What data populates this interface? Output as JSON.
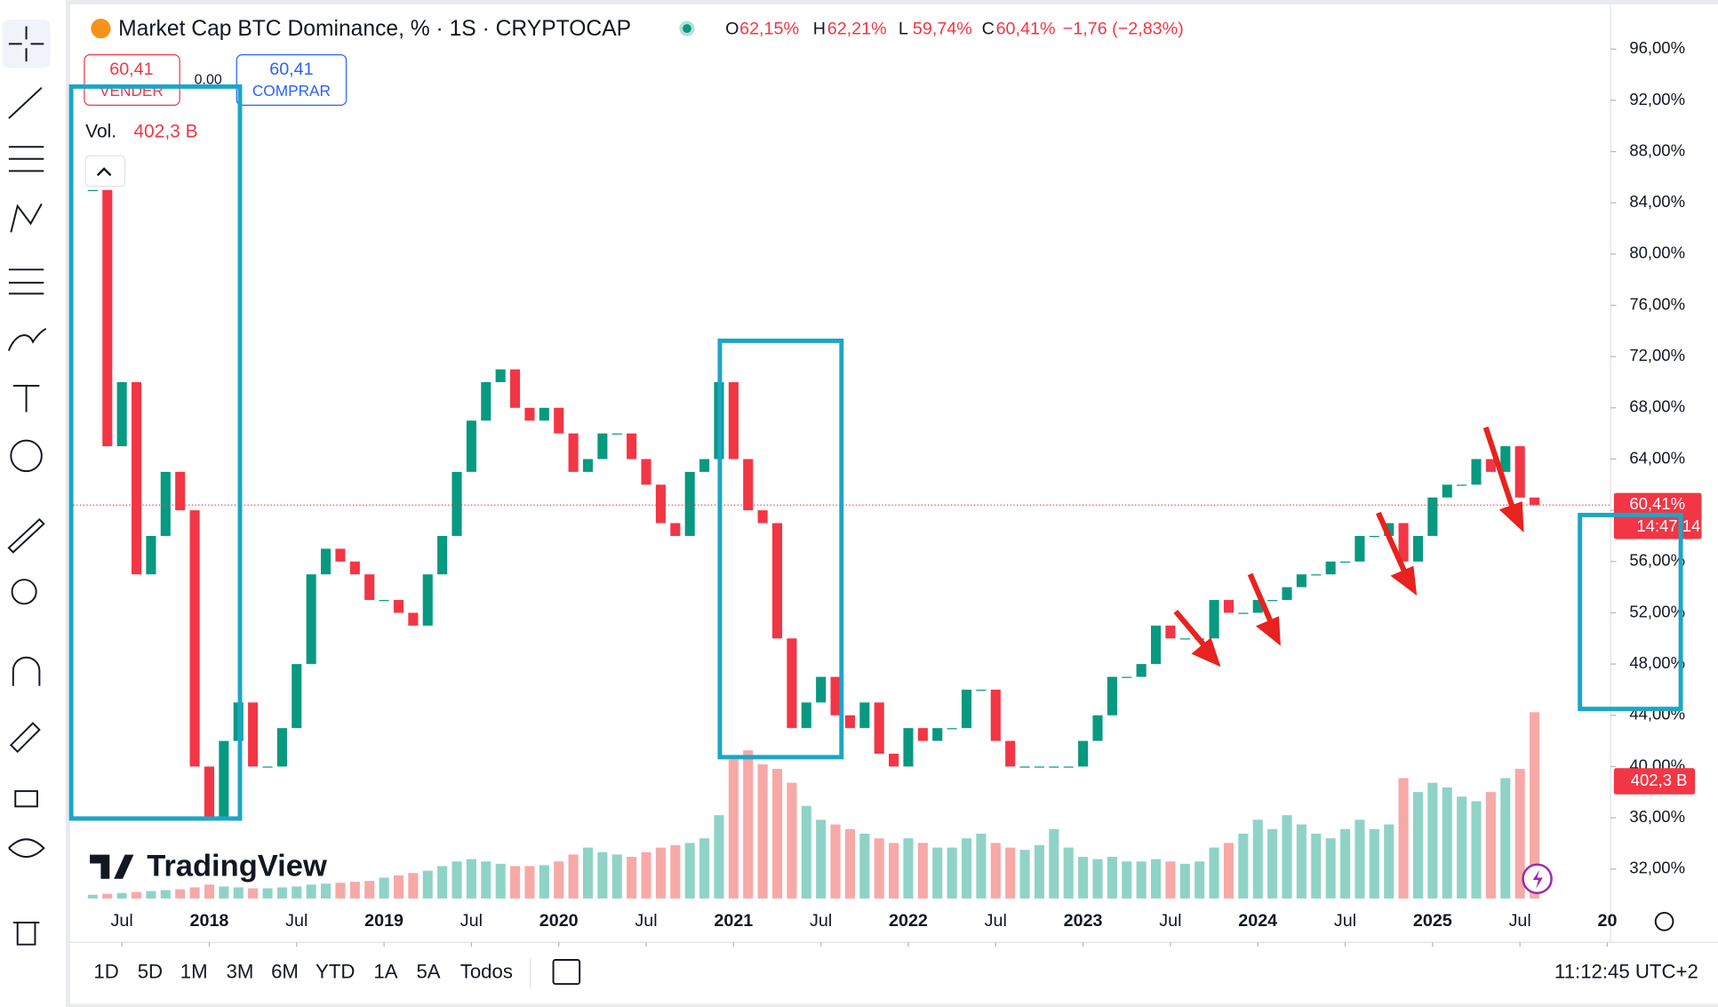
{
  "header": {
    "title": "Market Cap BTC Dominance, % · 1S · CRYPTOCAP",
    "ohlc": [
      {
        "key": "O",
        "value": "62,15%"
      },
      {
        "key": "H",
        "value": "62,21%"
      },
      {
        "key": "L",
        "value": "59,74%"
      },
      {
        "key": "C",
        "value": "60,41%"
      }
    ],
    "change": "−1,76 (−2,83%)"
  },
  "trade": {
    "sell_price": "60,41",
    "sell_label": "VENDER",
    "spread": "0.00",
    "buy_price": "60,41",
    "buy_label": "COMPRAR"
  },
  "volume_legend": {
    "label": "Vol.",
    "value": "402,3 B"
  },
  "logo": "TradingView",
  "price_tag": {
    "price": "60,41%",
    "countdown": "14:47:14",
    "volume": "402,3 B"
  },
  "timeframes": [
    "1D",
    "5D",
    "1M",
    "3M",
    "6M",
    "YTD",
    "1A",
    "5A",
    "Todos"
  ],
  "clock": "11:12:45 UTC+2",
  "chart_data": {
    "type": "candlestick",
    "colors": {
      "up": "#089981",
      "down": "#f23645",
      "volume_up": "#8fd3c7",
      "volume_down": "#f7a9a7"
    },
    "x": [
      "2017-05",
      "2017-06",
      "2017-07",
      "2017-08",
      "2017-09",
      "2017-10",
      "2017-11",
      "2017-12",
      "2018-01",
      "2018-02",
      "2018-03",
      "2018-04",
      "2018-05",
      "2018-06",
      "2018-07",
      "2018-08",
      "2018-09",
      "2018-10",
      "2018-11",
      "2018-12",
      "2019-01",
      "2019-02",
      "2019-03",
      "2019-04",
      "2019-05",
      "2019-06",
      "2019-07",
      "2019-08",
      "2019-09",
      "2019-10",
      "2019-11",
      "2019-12",
      "2020-01",
      "2020-02",
      "2020-03",
      "2020-04",
      "2020-05",
      "2020-06",
      "2020-07",
      "2020-08",
      "2020-09",
      "2020-10",
      "2020-11",
      "2020-12",
      "2021-01",
      "2021-02",
      "2021-03",
      "2021-04",
      "2021-05",
      "2021-06",
      "2021-07",
      "2021-08",
      "2021-09",
      "2021-10",
      "2021-11",
      "2021-12",
      "2022-01",
      "2022-02",
      "2022-03",
      "2022-04",
      "2022-05",
      "2022-06",
      "2022-07",
      "2022-08",
      "2022-09",
      "2022-10",
      "2022-11",
      "2022-12",
      "2023-01",
      "2023-02",
      "2023-03",
      "2023-04",
      "2023-05",
      "2023-06",
      "2023-07",
      "2023-08",
      "2023-09",
      "2023-10",
      "2023-11",
      "2023-12",
      "2024-01",
      "2024-02",
      "2024-03",
      "2024-04",
      "2024-05",
      "2024-06",
      "2024-07",
      "2024-08",
      "2024-09",
      "2024-10",
      "2024-11",
      "2024-12",
      "2025-01",
      "2025-02",
      "2025-03",
      "2025-04",
      "2025-05",
      "2025-06",
      "2025-07",
      "2025-08"
    ],
    "values": [
      85,
      65,
      70,
      55,
      58,
      63,
      60,
      40,
      36,
      42,
      45,
      40,
      40,
      43,
      48,
      55,
      57,
      56,
      55,
      53,
      53,
      52,
      51,
      55,
      58,
      63,
      67,
      70,
      71,
      68,
      67,
      68,
      66,
      63,
      64,
      66,
      66,
      64,
      62,
      59,
      58,
      63,
      64,
      70,
      64,
      60,
      59,
      50,
      43,
      45,
      47,
      44,
      43,
      45,
      41,
      40,
      43,
      42,
      43,
      43,
      46,
      46,
      42,
      40,
      40,
      40,
      40,
      40,
      42,
      44,
      47,
      47,
      48,
      51,
      50,
      50,
      50,
      53,
      52,
      52,
      53,
      53,
      54,
      55,
      55,
      56,
      56,
      58,
      58,
      59,
      56,
      58,
      61,
      62,
      62,
      64,
      63,
      65,
      61,
      60.41
    ],
    "volume": [
      8,
      10,
      12,
      14,
      16,
      18,
      20,
      24,
      30,
      26,
      24,
      22,
      22,
      24,
      26,
      30,
      32,
      34,
      36,
      38,
      45,
      50,
      55,
      60,
      70,
      80,
      85,
      80,
      75,
      70,
      70,
      72,
      80,
      95,
      110,
      100,
      95,
      90,
      100,
      110,
      115,
      120,
      130,
      180,
      300,
      320,
      290,
      280,
      250,
      200,
      170,
      160,
      150,
      140,
      130,
      120,
      130,
      120,
      110,
      110,
      130,
      140,
      120,
      110,
      105,
      115,
      150,
      110,
      90,
      85,
      90,
      80,
      80,
      85,
      80,
      75,
      80,
      110,
      120,
      140,
      170,
      150,
      180,
      160,
      140,
      130,
      150,
      170,
      150,
      160,
      260,
      230,
      250,
      240,
      220,
      210,
      230,
      260,
      280,
      402.3
    ],
    "ylim": [
      29.7,
      99.4
    ],
    "yticks": [
      {
        "value": 96,
        "label": "96,00%"
      },
      {
        "value": 92,
        "label": "92,00%"
      },
      {
        "value": 88,
        "label": "88,00%"
      },
      {
        "value": 84,
        "label": "84,00%"
      },
      {
        "value": 80,
        "label": "80,00%"
      },
      {
        "value": 76,
        "label": "76,00%"
      },
      {
        "value": 72,
        "label": "72,00%"
      },
      {
        "value": 68,
        "label": "68,00%"
      },
      {
        "value": 64,
        "label": "64,00%"
      },
      {
        "value": 60,
        "label": "60,00%"
      },
      {
        "value": 56,
        "label": "56,00%"
      },
      {
        "value": 52,
        "label": "52,00%"
      },
      {
        "value": 48,
        "label": "48,00%"
      },
      {
        "value": 44,
        "label": "44,00%"
      },
      {
        "value": 40,
        "label": "40,00%"
      },
      {
        "value": 36,
        "label": "36,00%"
      },
      {
        "value": 32,
        "label": "32,00%"
      }
    ],
    "xticks": [
      {
        "value": "2017-07",
        "label": "Jul"
      },
      {
        "value": "2018-01",
        "label": "2018"
      },
      {
        "value": "2018-07",
        "label": "Jul"
      },
      {
        "value": "2019-01",
        "label": "2019"
      },
      {
        "value": "2019-07",
        "label": "Jul"
      },
      {
        "value": "2020-01",
        "label": "2020"
      },
      {
        "value": "2020-07",
        "label": "Jul"
      },
      {
        "value": "2021-01",
        "label": "2021"
      },
      {
        "value": "2021-07",
        "label": "Jul"
      },
      {
        "value": "2022-01",
        "label": "2022"
      },
      {
        "value": "2022-07",
        "label": "Jul"
      },
      {
        "value": "2023-01",
        "label": "2023"
      },
      {
        "value": "2023-07",
        "label": "Jul"
      },
      {
        "value": "2024-01",
        "label": "2024"
      },
      {
        "value": "2024-07",
        "label": "Jul"
      },
      {
        "value": "2025-01",
        "label": "2025"
      },
      {
        "value": "2025-07",
        "label": "Jul"
      },
      {
        "value": "2026-01",
        "label": "20"
      }
    ],
    "last_price": 60.41
  }
}
